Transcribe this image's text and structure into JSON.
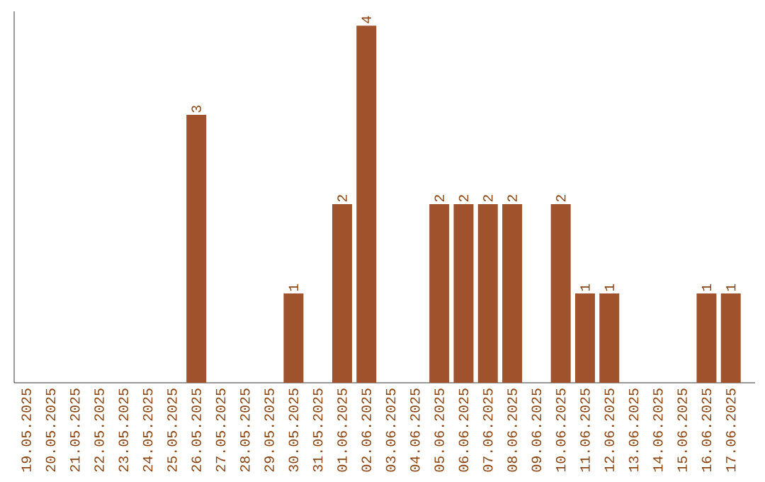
{
  "chart_data": {
    "type": "bar",
    "categories": [
      "19.05.2025",
      "20.05.2025",
      "21.05.2025",
      "22.05.2025",
      "23.05.2025",
      "24.05.2025",
      "25.05.2025",
      "26.05.2025",
      "27.05.2025",
      "28.05.2025",
      "29.05.2025",
      "30.05.2025",
      "31.05.2025",
      "01.06.2025",
      "02.06.2025",
      "03.06.2025",
      "04.06.2025",
      "05.06.2025",
      "06.06.2025",
      "07.06.2025",
      "08.06.2025",
      "09.06.2025",
      "10.06.2025",
      "11.06.2025",
      "12.06.2025",
      "13.06.2025",
      "14.06.2025",
      "15.06.2025",
      "16.06.2025",
      "17.06.2025"
    ],
    "values": [
      0,
      0,
      0,
      0,
      0,
      0,
      0,
      3,
      0,
      0,
      0,
      1,
      0,
      2,
      4,
      0,
      0,
      2,
      2,
      2,
      2,
      0,
      2,
      1,
      1,
      0,
      0,
      0,
      1,
      1
    ],
    "value_labels": [
      null,
      null,
      null,
      null,
      null,
      null,
      null,
      "3",
      null,
      null,
      null,
      "1",
      null,
      "2",
      "4",
      null,
      null,
      "2",
      "2",
      "2",
      "2",
      null,
      "2",
      "1",
      "1",
      null,
      null,
      null,
      "1",
      "1"
    ],
    "color": "#a0522d",
    "grid": false
  }
}
